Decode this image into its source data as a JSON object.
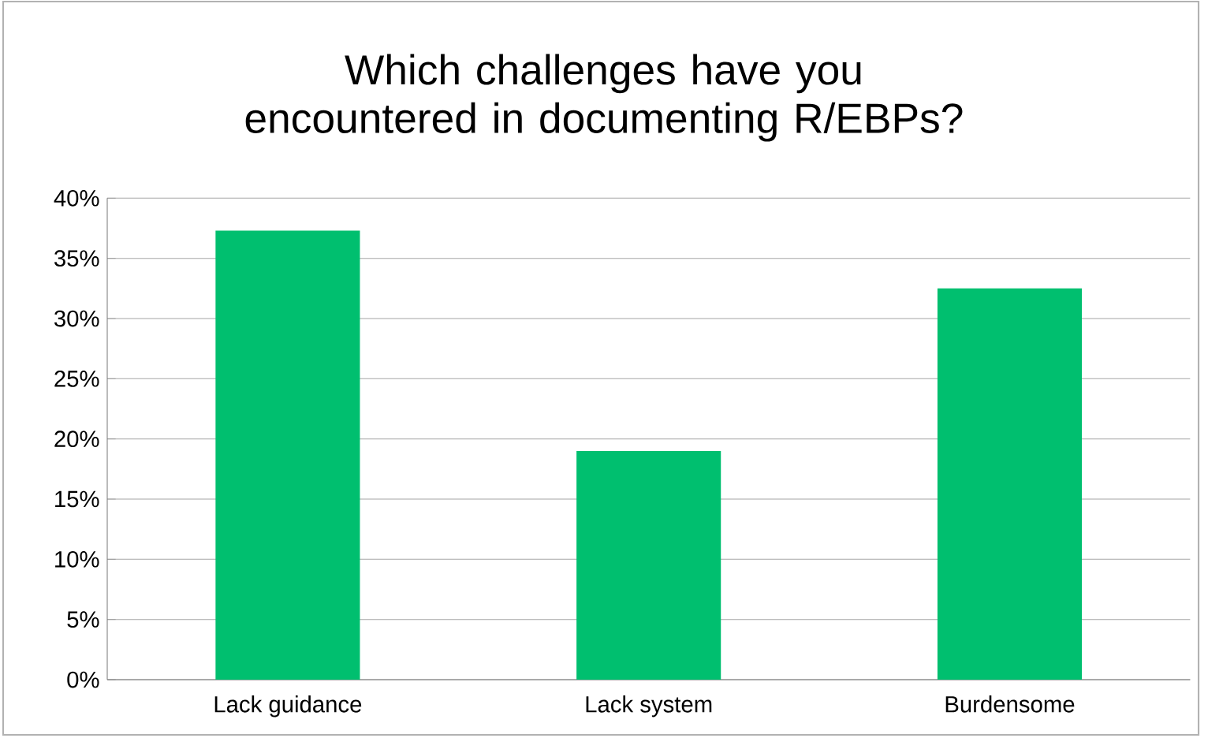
{
  "chart_data": {
    "type": "bar",
    "title": "Which challenges have you encountered in documenting R/EBPs?",
    "categories": [
      "Lack guidance",
      "Lack system",
      "Burdensome"
    ],
    "values": [
      37.3,
      19.0,
      32.5
    ],
    "color": "#00bf6f",
    "ylim": [
      0,
      40
    ],
    "yticks": [
      {
        "value": 0,
        "label": "0%"
      },
      {
        "value": 5,
        "label": "5%"
      },
      {
        "value": 10,
        "label": "10%"
      },
      {
        "value": 15,
        "label": "15%"
      },
      {
        "value": 20,
        "label": "20%"
      },
      {
        "value": 25,
        "label": "25%"
      },
      {
        "value": 30,
        "label": "30%"
      },
      {
        "value": 35,
        "label": "35%"
      },
      {
        "value": 40,
        "label": "40%"
      }
    ],
    "grid": "y"
  }
}
